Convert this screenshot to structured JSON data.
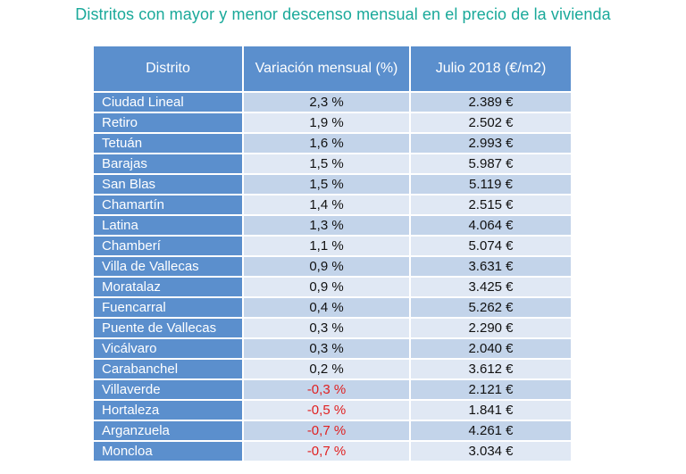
{
  "title": "Distritos con mayor y menor descenso mensual en el precio de la vivienda",
  "colors": {
    "title": "#1aa99a",
    "header": "#5b8fcd",
    "negative": "#e02020"
  },
  "table": {
    "headers": [
      "Distrito",
      "Variación mensual (%)",
      "Julio 2018 (€/m2)"
    ],
    "rows": [
      {
        "district": "Ciudad Lineal",
        "variation": "2,3 %",
        "price": "2.389 €",
        "negative": false
      },
      {
        "district": "Retiro",
        "variation": "1,9 %",
        "price": "2.502 €",
        "negative": false
      },
      {
        "district": "Tetuán",
        "variation": "1,6 %",
        "price": "2.993 €",
        "negative": false
      },
      {
        "district": "Barajas",
        "variation": "1,5 %",
        "price": "5.987 €",
        "negative": false
      },
      {
        "district": "San Blas",
        "variation": "1,5 %",
        "price": "5.119 €",
        "negative": false
      },
      {
        "district": "Chamartín",
        "variation": "1,4 %",
        "price": "2.515 €",
        "negative": false
      },
      {
        "district": "Latina",
        "variation": "1,3 %",
        "price": "4.064 €",
        "negative": false
      },
      {
        "district": "Chamberí",
        "variation": "1,1 %",
        "price": "5.074 €",
        "negative": false
      },
      {
        "district": "Villa de Vallecas",
        "variation": "0,9 %",
        "price": "3.631 €",
        "negative": false
      },
      {
        "district": "Moratalaz",
        "variation": "0,9 %",
        "price": "3.425 €",
        "negative": false
      },
      {
        "district": "Fuencarral",
        "variation": "0,4 %",
        "price": "5.262 €",
        "negative": false
      },
      {
        "district": "Puente de Vallecas",
        "variation": "0,3 %",
        "price": "2.290 €",
        "negative": false
      },
      {
        "district": "Vicálvaro",
        "variation": "0,3 %",
        "price": "2.040 €",
        "negative": false
      },
      {
        "district": "Carabanchel",
        "variation": "0,2 %",
        "price": "3.612 €",
        "negative": false
      },
      {
        "district": "Villaverde",
        "variation": "-0,3 %",
        "price": "2.121 €",
        "negative": true
      },
      {
        "district": "Hortaleza",
        "variation": "-0,5 %",
        "price": "1.841 €",
        "negative": true
      },
      {
        "district": "Arganzuela",
        "variation": "-0,7 %",
        "price": "4.261 €",
        "negative": true
      },
      {
        "district": "Moncloa",
        "variation": "-0,7 %",
        "price": "3.034 €",
        "negative": true
      }
    ]
  }
}
